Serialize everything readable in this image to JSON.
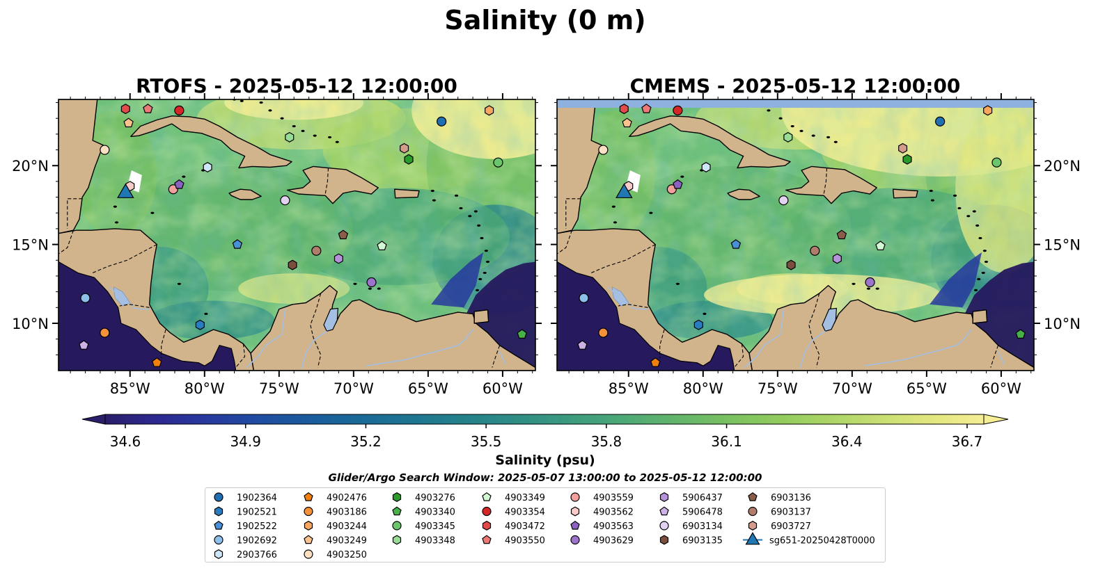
{
  "figure": {
    "suptitle": "Salinity (0 m)",
    "panels": [
      {
        "title": "RTOFS - 2025-05-12 12:00:00"
      },
      {
        "title": "CMEMS - 2025-05-12 12:00:00"
      }
    ],
    "x_ticks": [
      "85°W",
      "80°W",
      "75°W",
      "70°W",
      "65°W",
      "60°W"
    ],
    "y_ticks": [
      "20°N",
      "15°N",
      "10°N"
    ],
    "colorbar": {
      "label": "Salinity (psu)",
      "ticks": [
        "34.6",
        "34.9",
        "35.2",
        "35.5",
        "35.8",
        "36.1",
        "36.4",
        "36.7"
      ],
      "colors": [
        "#2a1e6a",
        "#2c2891",
        "#273a9e",
        "#1f4da0",
        "#1a5c9c",
        "#1a6a97",
        "#1d7690",
        "#24828a",
        "#2e8e84",
        "#3b9b7e",
        "#4ca876",
        "#61b46c",
        "#78c062",
        "#90cb5d",
        "#abd566",
        "#c7de72",
        "#e2e77f",
        "#f6ee95"
      ]
    },
    "search_window": "Glider/Argo Search Window: 2025-05-07 13:00:00 to 2025-05-12 12:00:00",
    "colors": {
      "land": "#d2b48c",
      "lake": "#a4bfe2",
      "deep_ocean": "#26195e",
      "high_salinity": "#f6ee95"
    }
  },
  "legend": {
    "columns": [
      [
        {
          "id": "1902364",
          "color": "#1f6fb2",
          "shape": "circle"
        },
        {
          "id": "1902521",
          "color": "#2a7cc0",
          "shape": "hexagon"
        },
        {
          "id": "1902522",
          "color": "#4a90d6",
          "shape": "pentagon"
        },
        {
          "id": "1902692",
          "color": "#8cc0ea",
          "shape": "circle"
        },
        {
          "id": "2903766",
          "color": "#cfe6f8",
          "shape": "hexagon"
        }
      ],
      [
        {
          "id": "4902476",
          "color": "#f07f0e",
          "shape": "pentagon"
        },
        {
          "id": "4903186",
          "color": "#f5923a",
          "shape": "circle"
        },
        {
          "id": "4903244",
          "color": "#f9a75e",
          "shape": "hexagon"
        },
        {
          "id": "4903249",
          "color": "#fbc28e",
          "shape": "pentagon"
        },
        {
          "id": "4903250",
          "color": "#fde0c2",
          "shape": "circle"
        }
      ],
      [
        {
          "id": "4903276",
          "color": "#2a9a2a",
          "shape": "hexagon"
        },
        {
          "id": "4903340",
          "color": "#48b048",
          "shape": "pentagon"
        },
        {
          "id": "4903345",
          "color": "#6cc46c",
          "shape": "circle"
        },
        {
          "id": "4903348",
          "color": "#98dc98",
          "shape": "hexagon"
        }
      ],
      [
        {
          "id": "4903349",
          "color": "#d4f7d4",
          "shape": "pentagon"
        },
        {
          "id": "4903354",
          "color": "#d62728",
          "shape": "circle"
        },
        {
          "id": "4903472",
          "color": "#e34a4a",
          "shape": "hexagon"
        },
        {
          "id": "4903550",
          "color": "#ec7a78",
          "shape": "pentagon"
        }
      ],
      [
        {
          "id": "4903559",
          "color": "#f2a09c",
          "shape": "circle"
        },
        {
          "id": "4903562",
          "color": "#f8cbc8",
          "shape": "hexagon"
        },
        {
          "id": "4903563",
          "color": "#8b62c0",
          "shape": "pentagon"
        },
        {
          "id": "4903629",
          "color": "#9c74cc",
          "shape": "circle"
        }
      ],
      [
        {
          "id": "5906437",
          "color": "#b592da",
          "shape": "hexagon"
        },
        {
          "id": "5906478",
          "color": "#ccb2e6",
          "shape": "pentagon"
        },
        {
          "id": "6903134",
          "color": "#e3d1f2",
          "shape": "circle"
        },
        {
          "id": "6903135",
          "color": "#7a4f3e",
          "shape": "hexagon"
        }
      ],
      [
        {
          "id": "6903136",
          "color": "#8c5c4a",
          "shape": "pentagon"
        },
        {
          "id": "6903137",
          "color": "#b07c6c",
          "shape": "circle"
        },
        {
          "id": "6903727",
          "color": "#d49c8c",
          "shape": "hexagon"
        },
        {
          "id": "sg651-20250428T0000",
          "color": "#1f77b4",
          "shape": "triangle"
        }
      ]
    ]
  },
  "markers": [
    {
      "lon": -85.3,
      "lat": 23.6,
      "shape": "hexagon",
      "color": "#e34a4a"
    },
    {
      "lon": -83.8,
      "lat": 23.6,
      "shape": "pentagon",
      "color": "#ec7a78"
    },
    {
      "lon": -81.7,
      "lat": 23.5,
      "shape": "circle",
      "color": "#d62728"
    },
    {
      "lon": -85.1,
      "lat": 22.7,
      "shape": "pentagon",
      "color": "#fbc28e"
    },
    {
      "lon": -86.7,
      "lat": 21.0,
      "shape": "circle",
      "color": "#fde0c2"
    },
    {
      "lon": -74.3,
      "lat": 21.8,
      "shape": "hexagon",
      "color": "#98dc98"
    },
    {
      "lon": -64.1,
      "lat": 22.8,
      "shape": "circle",
      "color": "#1f6fb2"
    },
    {
      "lon": -60.9,
      "lat": 23.5,
      "shape": "hexagon",
      "color": "#f9a75e"
    },
    {
      "lon": -66.6,
      "lat": 21.1,
      "shape": "hexagon",
      "color": "#d49c8c"
    },
    {
      "lon": -66.3,
      "lat": 20.4,
      "shape": "hexagon",
      "color": "#2a9a2a"
    },
    {
      "lon": -60.3,
      "lat": 20.2,
      "shape": "circle",
      "color": "#6cc46c"
    },
    {
      "lon": -79.8,
      "lat": 19.9,
      "shape": "hexagon",
      "color": "#cfe6f8"
    },
    {
      "lon": -85.0,
      "lat": 18.7,
      "shape": "hexagon",
      "color": "#f8cbc8"
    },
    {
      "lon": -82.1,
      "lat": 18.5,
      "shape": "circle",
      "color": "#f2a09c"
    },
    {
      "lon": -81.7,
      "lat": 18.8,
      "shape": "pentagon",
      "color": "#8b62c0"
    },
    {
      "lon": -74.6,
      "lat": 17.8,
      "shape": "circle",
      "color": "#e3d1f2"
    },
    {
      "lon": -77.8,
      "lat": 15.0,
      "shape": "pentagon",
      "color": "#4a90d6"
    },
    {
      "lon": -70.7,
      "lat": 15.6,
      "shape": "pentagon",
      "color": "#8c5c4a"
    },
    {
      "lon": -68.1,
      "lat": 14.9,
      "shape": "pentagon",
      "color": "#d4f7d4"
    },
    {
      "lon": -72.5,
      "lat": 14.6,
      "shape": "circle",
      "color": "#b07c6c"
    },
    {
      "lon": -71.0,
      "lat": 14.1,
      "shape": "hexagon",
      "color": "#b592da"
    },
    {
      "lon": -74.1,
      "lat": 13.7,
      "shape": "hexagon",
      "color": "#7a4f3e"
    },
    {
      "lon": -68.8,
      "lat": 12.6,
      "shape": "circle",
      "color": "#9c74cc"
    },
    {
      "lon": -88.0,
      "lat": 11.6,
      "shape": "circle",
      "color": "#8cc0ea"
    },
    {
      "lon": -80.3,
      "lat": 9.9,
      "shape": "hexagon",
      "color": "#2a7cc0"
    },
    {
      "lon": -86.7,
      "lat": 9.4,
      "shape": "circle",
      "color": "#f5923a"
    },
    {
      "lon": -88.1,
      "lat": 8.6,
      "shape": "pentagon",
      "color": "#ccb2e6"
    },
    {
      "lon": -83.2,
      "lat": 7.5,
      "shape": "pentagon",
      "color": "#f07f0e"
    },
    {
      "lon": -58.7,
      "lat": 9.3,
      "shape": "pentagon",
      "color": "#48b048"
    }
  ],
  "glider": {
    "lon": -85.3,
    "lat": 18.4,
    "color": "#1f77b4"
  }
}
